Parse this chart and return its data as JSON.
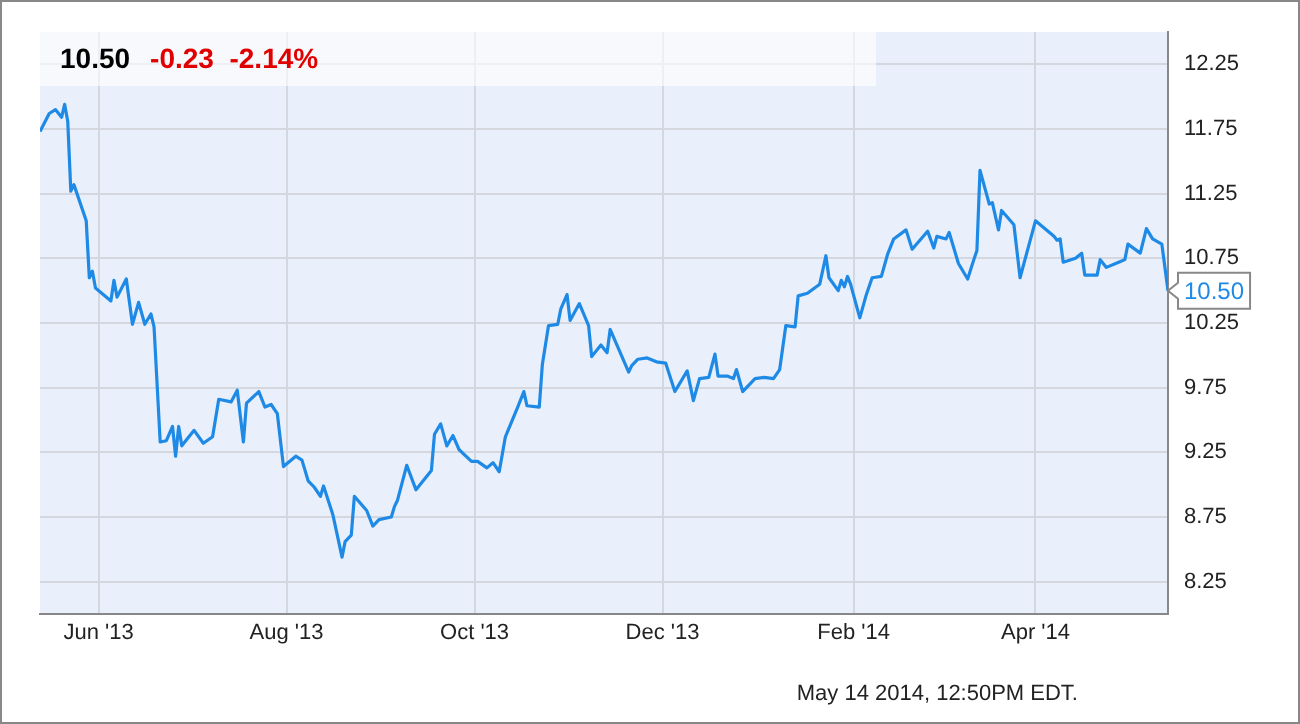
{
  "chart_data": {
    "type": "line",
    "title": "10.50",
    "subtitle": "-0.23  -2.14%",
    "x": [
      "2013-05-13",
      "2013-05-16",
      "2013-05-18",
      "2013-05-20",
      "2013-05-21",
      "2013-05-22",
      "2013-05-23",
      "2013-05-24",
      "2013-05-28",
      "2013-05-29",
      "2013-05-30",
      "2013-05-31",
      "2013-06-03",
      "2013-06-05",
      "2013-06-06",
      "2013-06-07",
      "2013-06-10",
      "2013-06-12",
      "2013-06-14",
      "2013-06-16",
      "2013-06-18",
      "2013-06-19",
      "2013-06-21",
      "2013-06-23",
      "2013-06-25",
      "2013-06-26",
      "2013-06-27",
      "2013-06-28",
      "2013-07-02",
      "2013-07-05",
      "2013-07-08",
      "2013-07-10",
      "2013-07-14",
      "2013-07-16",
      "2013-07-18",
      "2013-07-19",
      "2013-07-23",
      "2013-07-25",
      "2013-07-27",
      "2013-07-29",
      "2013-07-31",
      "2013-08-04",
      "2013-08-06",
      "2013-08-08",
      "2013-08-10",
      "2013-08-12",
      "2013-08-13",
      "2013-08-16",
      "2013-08-19",
      "2013-08-20",
      "2013-08-22",
      "2013-08-23",
      "2013-08-27",
      "2013-08-29",
      "2013-08-31",
      "2013-09-04",
      "2013-09-05",
      "2013-09-06",
      "2013-09-09",
      "2013-09-12",
      "2013-09-17",
      "2013-09-18",
      "2013-09-20",
      "2013-09-22",
      "2013-09-24",
      "2013-09-26",
      "2013-09-30",
      "2013-10-02",
      "2013-10-05",
      "2013-10-07",
      "2013-10-09",
      "2013-10-11",
      "2013-10-15",
      "2013-10-17",
      "2013-10-18",
      "2013-10-22",
      "2013-10-23",
      "2013-10-25",
      "2013-10-28",
      "2013-10-29",
      "2013-10-31",
      "2013-11-01",
      "2013-11-04",
      "2013-11-07",
      "2013-11-08",
      "2013-11-11",
      "2013-11-13",
      "2013-11-14",
      "2013-11-16",
      "2013-11-20",
      "2013-11-21",
      "2013-11-23",
      "2013-11-26",
      "2013-11-29",
      "2013-12-02",
      "2013-12-05",
      "2013-12-09",
      "2013-12-11",
      "2013-12-13",
      "2013-12-16",
      "2013-12-18",
      "2013-12-19",
      "2013-12-22",
      "2013-12-24",
      "2013-12-25",
      "2013-12-27",
      "2013-12-31",
      "2014-01-03",
      "2014-01-06",
      "2014-01-08",
      "2014-01-10",
      "2014-01-13",
      "2014-01-14",
      "2014-01-17",
      "2014-01-21",
      "2014-01-23",
      "2014-01-24",
      "2014-01-27",
      "2014-01-28",
      "2014-01-29",
      "2014-01-30",
      "2014-01-31",
      "2014-02-03",
      "2014-02-05",
      "2014-02-07",
      "2014-02-10",
      "2014-02-12",
      "2014-02-14",
      "2014-02-18",
      "2014-02-20",
      "2014-02-25",
      "2014-02-27",
      "2014-02-28",
      "2014-03-03",
      "2014-03-04",
      "2014-03-07",
      "2014-03-10",
      "2014-03-12",
      "2014-03-13",
      "2014-03-14",
      "2014-03-17",
      "2014-03-18",
      "2014-03-20",
      "2014-03-21",
      "2014-03-25",
      "2014-03-27",
      "2014-04-01",
      "2014-04-07",
      "2014-04-08",
      "2014-04-09",
      "2014-04-10",
      "2014-04-14",
      "2014-04-16",
      "2014-04-17",
      "2014-04-21",
      "2014-04-22",
      "2014-04-24",
      "2014-04-28",
      "2014-04-30",
      "2014-05-01",
      "2014-05-05",
      "2014-05-07",
      "2014-05-09",
      "2014-05-12",
      "2014-05-14"
    ],
    "series": [
      {
        "color": "#1e8ae6",
        "values": [
          11.73,
          11.87,
          11.9,
          11.84,
          11.94,
          11.81,
          11.27,
          11.32,
          11.04,
          10.6,
          10.65,
          10.52,
          10.46,
          10.42,
          10.58,
          10.45,
          10.59,
          10.24,
          10.41,
          10.24,
          10.32,
          10.22,
          9.33,
          9.34,
          9.45,
          9.22,
          9.45,
          9.3,
          9.42,
          9.32,
          9.37,
          9.66,
          9.64,
          9.73,
          9.33,
          9.63,
          9.72,
          9.6,
          9.62,
          9.55,
          9.14,
          9.22,
          9.19,
          9.03,
          8.98,
          8.91,
          8.99,
          8.77,
          8.44,
          8.56,
          8.61,
          8.91,
          8.8,
          8.68,
          8.73,
          8.75,
          8.83,
          8.88,
          9.15,
          8.96,
          9.11,
          9.39,
          9.47,
          9.3,
          9.38,
          9.27,
          9.18,
          9.18,
          9.13,
          9.17,
          9.1,
          9.37,
          9.6,
          9.72,
          9.61,
          9.6,
          9.93,
          10.23,
          10.24,
          10.36,
          10.47,
          10.27,
          10.4,
          10.23,
          9.99,
          10.08,
          10.02,
          10.2,
          10.09,
          9.87,
          9.92,
          9.97,
          9.98,
          9.95,
          9.94,
          9.72,
          9.88,
          9.65,
          9.82,
          9.83,
          10.01,
          9.84,
          9.84,
          9.82,
          9.89,
          9.72,
          9.82,
          9.83,
          9.82,
          9.89,
          10.23,
          10.22,
          10.46,
          10.48,
          10.55,
          10.77,
          10.6,
          10.5,
          10.58,
          10.53,
          10.61,
          10.55,
          10.29,
          10.46,
          10.6,
          10.61,
          10.78,
          10.9,
          10.97,
          10.82,
          10.96,
          10.83,
          10.92,
          10.9,
          10.95,
          10.71,
          10.59,
          10.74,
          10.81,
          11.43,
          11.17,
          11.18,
          10.97,
          11.12,
          11.01,
          10.6,
          11.04,
          10.92,
          10.89,
          10.9,
          10.72,
          10.75,
          10.79,
          10.62,
          10.62,
          10.74,
          10.68,
          10.72,
          10.74,
          10.86,
          10.79,
          10.98,
          10.9,
          10.86,
          10.5
        ]
      }
    ],
    "xlim": [
      "2013-05-13",
      "2014-05-14"
    ],
    "xticks": [
      {
        "value": "2013-06-01",
        "label": "Jun '13"
      },
      {
        "value": "2013-08-01",
        "label": "Aug '13"
      },
      {
        "value": "2013-10-01",
        "label": "Oct '13"
      },
      {
        "value": "2013-12-01",
        "label": "Dec '13"
      },
      {
        "value": "2014-02-01",
        "label": "Feb '14"
      },
      {
        "value": "2014-04-01",
        "label": "Apr '14"
      }
    ],
    "ylim": [
      8.0,
      12.5
    ],
    "yticks": [
      8.25,
      8.75,
      9.25,
      9.75,
      10.25,
      10.75,
      11.25,
      11.75,
      12.25
    ],
    "annotations": [
      "May 14 2014, 12:50PM EDT.",
      {
        "text": "10.50",
        "x": "2014-05-14",
        "y": 10.5
      }
    ],
    "grid": true,
    "legend": false,
    "marker": "none",
    "line_style": "solid"
  }
}
